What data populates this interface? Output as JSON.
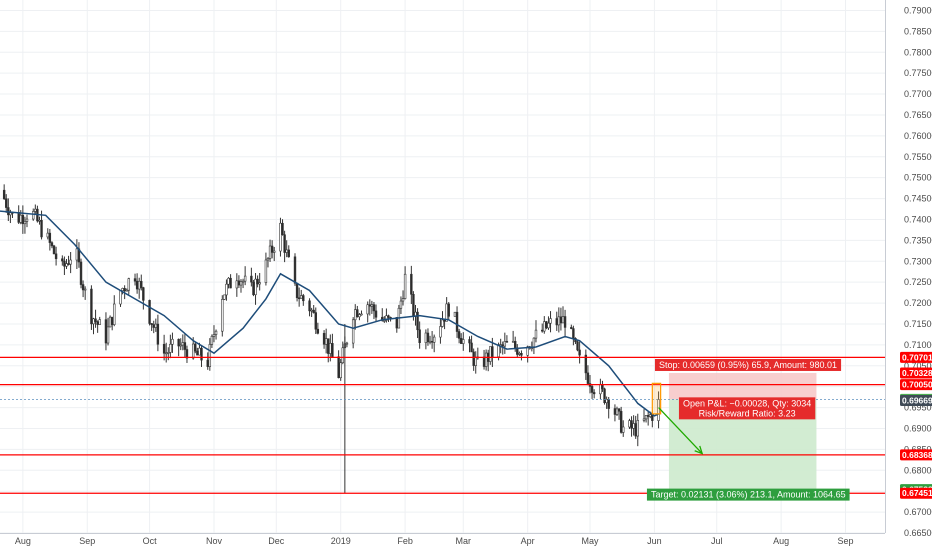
{
  "colors": {
    "up": "#26a69a",
    "down": "#ef5350",
    "candle_body": "#2b2b2b",
    "ma": "#1e4d7a",
    "level": "#ff0000",
    "stop_zone": "#f7c6c6",
    "target_zone": "#cdeacd",
    "target_label": "#2e9e3e",
    "stop_label": "#e52b2b",
    "price_tag_current": "#3f4a56",
    "price_tag_entry": "#4caf50"
  },
  "chart_data": {
    "type": "candlestick",
    "ylim": [
      0.665,
      0.7925
    ],
    "xlim": [
      "2018-07-21",
      "2019-09-20"
    ],
    "y_ticks": [
      "0.79000",
      "0.78500",
      "0.78000",
      "0.77500",
      "0.77000",
      "0.76500",
      "0.76000",
      "0.75500",
      "0.75000",
      "0.74500",
      "0.74000",
      "0.73500",
      "0.73000",
      "0.72500",
      "0.72000",
      "0.71500",
      "0.71000",
      "0.70500",
      "0.70000",
      "0.69500",
      "0.69000",
      "0.68500",
      "0.68000",
      "0.67500",
      "0.67000",
      "0.66500"
    ],
    "x_ticks": [
      {
        "label": "Aug",
        "date": "2018-08-01"
      },
      {
        "label": "Sep",
        "date": "2018-09-01"
      },
      {
        "label": "Oct",
        "date": "2018-10-01"
      },
      {
        "label": "Nov",
        "date": "2018-11-01"
      },
      {
        "label": "Dec",
        "date": "2018-12-01"
      },
      {
        "label": "2019",
        "date": "2019-01-01"
      },
      {
        "label": "Feb",
        "date": "2019-02-01"
      },
      {
        "label": "Mar",
        "date": "2019-03-01"
      },
      {
        "label": "Apr",
        "date": "2019-04-01"
      },
      {
        "label": "May",
        "date": "2019-05-01"
      },
      {
        "label": "Jun",
        "date": "2019-06-01"
      },
      {
        "label": "Jul",
        "date": "2019-07-01"
      },
      {
        "label": "Aug",
        "date": "2019-08-01"
      },
      {
        "label": "Sep",
        "date": "2019-09-01"
      }
    ],
    "price_path": [
      [
        "2018-07-21",
        0.747
      ],
      [
        "2018-07-28",
        0.74
      ],
      [
        "2018-08-05",
        0.742
      ],
      [
        "2018-08-12",
        0.736
      ],
      [
        "2018-08-20",
        0.728
      ],
      [
        "2018-08-26",
        0.733
      ],
      [
        "2018-09-02",
        0.718
      ],
      [
        "2018-09-10",
        0.712
      ],
      [
        "2018-09-17",
        0.723
      ],
      [
        "2018-09-24",
        0.727
      ],
      [
        "2018-10-01",
        0.717
      ],
      [
        "2018-10-08",
        0.708
      ],
      [
        "2018-10-15",
        0.71
      ],
      [
        "2018-10-22",
        0.708
      ],
      [
        "2018-10-29",
        0.706
      ],
      [
        "2018-11-05",
        0.722
      ],
      [
        "2018-11-12",
        0.727
      ],
      [
        "2018-11-19",
        0.723
      ],
      [
        "2018-11-26",
        0.729
      ],
      [
        "2018-12-03",
        0.738
      ],
      [
        "2018-12-10",
        0.723
      ],
      [
        "2018-12-17",
        0.719
      ],
      [
        "2018-12-24",
        0.712
      ],
      [
        "2018-12-31",
        0.703
      ],
      [
        "2019-01-07",
        0.718
      ],
      [
        "2019-01-14",
        0.72
      ],
      [
        "2019-01-21",
        0.716
      ],
      [
        "2019-01-28",
        0.715
      ],
      [
        "2019-02-01",
        0.726
      ],
      [
        "2019-02-08",
        0.712
      ],
      [
        "2019-02-15",
        0.713
      ],
      [
        "2019-02-22",
        0.719
      ],
      [
        "2019-03-01",
        0.711
      ],
      [
        "2019-03-08",
        0.705
      ],
      [
        "2019-03-15",
        0.708
      ],
      [
        "2019-03-22",
        0.71
      ],
      [
        "2019-03-29",
        0.709
      ],
      [
        "2019-04-05",
        0.712
      ],
      [
        "2019-04-12",
        0.715
      ],
      [
        "2019-04-19",
        0.716
      ],
      [
        "2019-04-26",
        0.706
      ],
      [
        "2019-05-03",
        0.7
      ],
      [
        "2019-05-10",
        0.697
      ],
      [
        "2019-05-17",
        0.69
      ],
      [
        "2019-05-24",
        0.69
      ],
      [
        "2019-05-31",
        0.6935
      ],
      [
        "2019-06-03",
        0.696
      ]
    ],
    "ma_path": [
      [
        "2018-07-21",
        0.742
      ],
      [
        "2018-08-12",
        0.741
      ],
      [
        "2018-08-26",
        0.734
      ],
      [
        "2018-09-10",
        0.725
      ],
      [
        "2018-09-24",
        0.721
      ],
      [
        "2018-10-08",
        0.717
      ],
      [
        "2018-10-22",
        0.711
      ],
      [
        "2018-11-01",
        0.708
      ],
      [
        "2018-11-15",
        0.714
      ],
      [
        "2018-11-26",
        0.721
      ],
      [
        "2018-12-03",
        0.727
      ],
      [
        "2018-12-17",
        0.723
      ],
      [
        "2018-12-31",
        0.715
      ],
      [
        "2019-01-07",
        0.714
      ],
      [
        "2019-01-21",
        0.716
      ],
      [
        "2019-02-08",
        0.717
      ],
      [
        "2019-02-22",
        0.716
      ],
      [
        "2019-03-08",
        0.712
      ],
      [
        "2019-03-22",
        0.709
      ],
      [
        "2019-04-05",
        0.7095
      ],
      [
        "2019-04-19",
        0.712
      ],
      [
        "2019-04-26",
        0.711
      ],
      [
        "2019-05-10",
        0.705
      ],
      [
        "2019-05-24",
        0.696
      ],
      [
        "2019-06-01",
        0.693
      ],
      [
        "2019-06-03",
        0.6935
      ]
    ],
    "levels": [
      0.70701,
      0.7005,
      0.68368,
      0.67451
    ],
    "position": {
      "entry": 0.69697,
      "stop": 0.70328,
      "target": 0.67538,
      "start_date": "2019-06-08",
      "end_date": "2019-08-18"
    },
    "projection_arrow": {
      "from": [
        "2019-06-03",
        0.695
      ],
      "to": [
        "2019-06-24",
        0.684
      ]
    },
    "highlight_box": {
      "date_from": "2019-05-31",
      "date_to": "2019-06-04",
      "low": 0.6935,
      "high": 0.7008
    }
  },
  "price_tags": [
    {
      "value": "0.70701",
      "kind": "level"
    },
    {
      "value": "0.70328",
      "kind": "stop"
    },
    {
      "value": "0.70050",
      "kind": "level"
    },
    {
      "value": "0.69697",
      "kind": "entry"
    },
    {
      "value": "0.69669",
      "kind": "current"
    },
    {
      "value": "0.68368",
      "kind": "level"
    },
    {
      "value": "0.67538",
      "kind": "target"
    },
    {
      "value": "0.67451",
      "kind": "level"
    }
  ],
  "labels": {
    "stop": "Stop: 0.00659 (0.95%) 65.9, Amount: 980.01",
    "pnl": "Open P&L: −0.00028, Qty: 3034",
    "rr": "Risk/Reward Ratio: 3.23",
    "target": "Target: 0.02131 (3.06%) 213.1, Amount: 1064.65"
  }
}
